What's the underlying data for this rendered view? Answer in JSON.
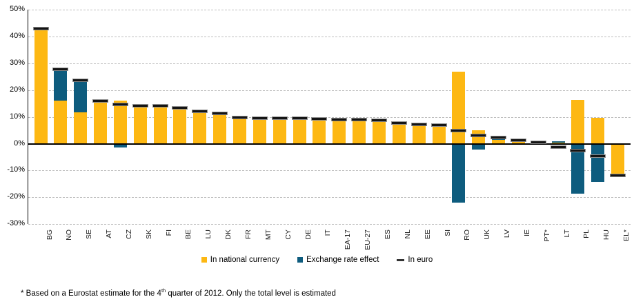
{
  "chart_data": {
    "type": "bar",
    "title": "",
    "categories": [
      "BG",
      "NO",
      "SE",
      "AT",
      "CZ",
      "SK",
      "FI",
      "BE",
      "LU",
      "DK",
      "FR",
      "MT",
      "CY",
      "DE",
      "IT",
      "EA-17",
      "EU-27",
      "ES",
      "NL",
      "EE",
      "SI",
      "RO",
      "UK",
      "LV",
      "IE",
      "PT*",
      "LT",
      "PL",
      "HU",
      "EL*"
    ],
    "series": [
      {
        "name": "In national currency",
        "role": "national-currency-bar",
        "color": "#FDB813",
        "values": [
          42.6,
          16.0,
          11.6,
          15.7,
          16.0,
          14.0,
          13.9,
          13.2,
          11.8,
          11.0,
          9.5,
          9.3,
          9.4,
          9.3,
          9.0,
          8.7,
          8.7,
          8.4,
          7.5,
          7.0,
          6.7,
          26.8,
          5.1,
          1.4,
          1.0,
          0,
          0.5,
          16.2,
          9.6,
          -11.6
        ]
      },
      {
        "name": "Exchange rate effect",
        "role": "exchange-rate-bar",
        "color": "#0E5C7E",
        "values": [
          0,
          11.5,
          12.0,
          0,
          -1.4,
          0,
          0,
          0,
          0,
          0,
          0,
          0,
          0,
          0,
          0,
          0,
          0,
          0,
          0,
          0,
          0,
          -22.0,
          -2.2,
          1.2,
          0,
          0,
          0.5,
          -18.7,
          -14.3,
          0
        ]
      },
      {
        "name": "In euro",
        "role": "euro-total-marker",
        "color": "#141414",
        "values": [
          42.8,
          27.6,
          23.7,
          15.9,
          14.7,
          14.2,
          14.1,
          13.4,
          12.0,
          11.2,
          9.7,
          9.5,
          9.6,
          9.5,
          9.2,
          8.9,
          8.9,
          8.6,
          7.7,
          7.2,
          6.9,
          5.0,
          3.2,
          2.2,
          1.2,
          0.5,
          -1.2,
          -2.6,
          -4.6,
          -11.9
        ]
      }
    ],
    "xlabel": "",
    "ylabel": "",
    "yticks": [
      50,
      40,
      30,
      20,
      10,
      0,
      -10,
      -20,
      -30
    ],
    "ytick_suffix": "%",
    "ylim": [
      -30,
      50
    ],
    "grid": "horizontal-dashed",
    "legend_position": "bottom-center",
    "marker_border_color": "#8e8e8e",
    "gridline_color": "#bdbdbd",
    "axis_color": "#000000"
  },
  "footnote": {
    "part1": "* Based on a Eurostat estimate for the 4",
    "superscript": "th",
    "part2": " quarter of 2012. Only the total level is estimated"
  }
}
